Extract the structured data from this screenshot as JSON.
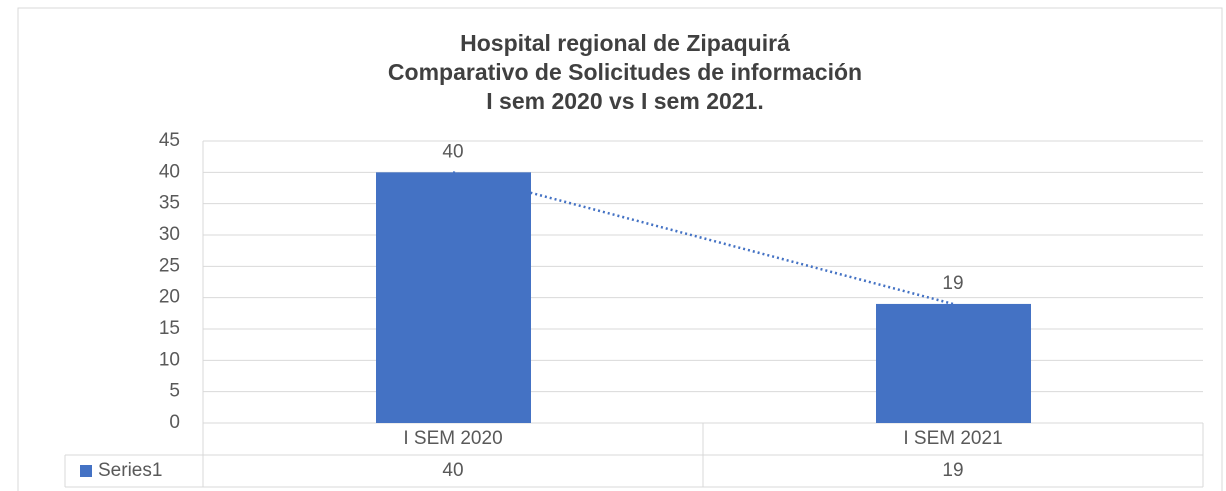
{
  "chart_data": {
    "type": "bar",
    "title": [
      "Hospital regional de Zipaquirá",
      "Comparativo de Solicitudes de información",
      "I sem 2020 vs I sem 2021."
    ],
    "categories": [
      "I SEM 2020",
      "I SEM 2021"
    ],
    "series": [
      {
        "name": "Series1",
        "color": "#4472c4",
        "values": [
          40,
          19
        ]
      }
    ],
    "ylim": [
      0,
      45
    ],
    "yticks": [
      0,
      5,
      10,
      15,
      20,
      25,
      30,
      35,
      40,
      45
    ],
    "grid": true,
    "trendline": "linear",
    "data_table": true
  }
}
